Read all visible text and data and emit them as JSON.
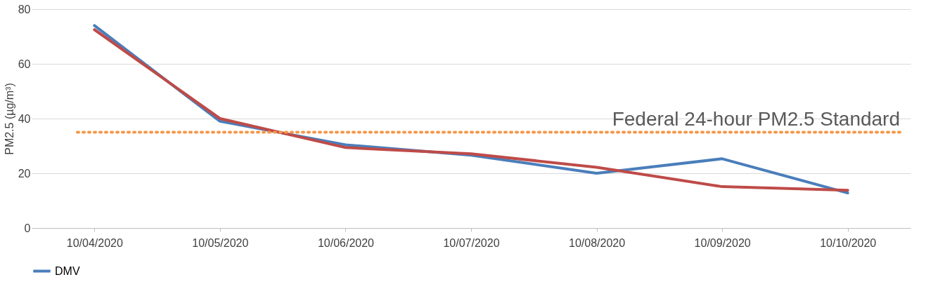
{
  "chart_data": {
    "type": "line",
    "ylabel": "PM2.5 (µg/m³)",
    "categories": [
      "10/04/2020",
      "10/05/2020",
      "10/06/2020",
      "10/07/2020",
      "10/08/2020",
      "10/09/2020",
      "10/10/2020"
    ],
    "series": [
      {
        "name": "DMV",
        "color": "#4a7ebb",
        "values": [
          74,
          39,
          30.4,
          26.6,
          20,
          25.3,
          12.8
        ]
      },
      {
        "color": "#be4b48",
        "values": [
          72.5,
          40,
          29.4,
          27.1,
          22.2,
          15.1,
          13.8
        ]
      }
    ],
    "ylim": [
      0,
      80
    ],
    "yticks": [
      0,
      20,
      40,
      60,
      80
    ],
    "grid": "y",
    "legend": "bottom",
    "marker": "none",
    "line_style": "solid",
    "ref_lines": [
      {
        "axis": "y",
        "value": 35,
        "label": "Federal 24-hour PM2.5 Standard",
        "color": "#f79646",
        "line_style": "dotted"
      }
    ]
  }
}
